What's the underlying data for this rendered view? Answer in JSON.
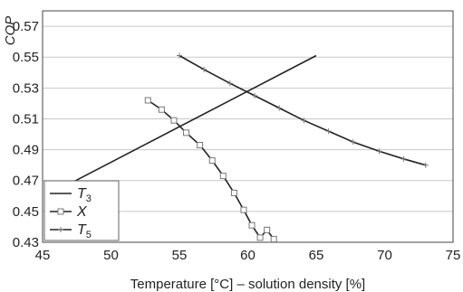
{
  "chart_data": {
    "type": "line",
    "xlabel": "Temperature [°C] – solution density [%]",
    "ylabel": "COP",
    "xlim": [
      45,
      75
    ],
    "ylim": [
      0.43,
      0.58
    ],
    "x_ticks": [
      "45",
      "50",
      "55",
      "60",
      "65",
      "70",
      "75"
    ],
    "y_ticks": [
      "0.43",
      "0.45",
      "0.47",
      "0.49",
      "0.51",
      "0.53",
      "0.55",
      "0.57"
    ],
    "grid": "horizontal",
    "legend_position": "bottom-left",
    "series": [
      {
        "name": "T",
        "name_sub": "3",
        "marker": "none",
        "color": "#222222",
        "x": [
          47,
          65
        ],
        "y": [
          0.468,
          0.551
        ]
      },
      {
        "name": "X",
        "name_sub": "",
        "marker": "square",
        "color": "#222222",
        "x": [
          52.7,
          53.7,
          54.6,
          55.5,
          56.5,
          57.4,
          58.2,
          59.0,
          59.7,
          60.3,
          60.9,
          61.4,
          61.9
        ],
        "y": [
          0.522,
          0.516,
          0.509,
          0.501,
          0.493,
          0.483,
          0.473,
          0.462,
          0.451,
          0.441,
          0.433,
          0.438,
          0.432
        ]
      },
      {
        "name": "T",
        "name_sub": "5",
        "marker": "plus",
        "color": "#222222",
        "x": [
          55,
          56.8,
          58.7,
          60.5,
          62.3,
          64.1,
          65.9,
          67.7,
          69.6,
          71.4,
          73.0
        ],
        "y": [
          0.551,
          0.542,
          0.533,
          0.525,
          0.517,
          0.509,
          0.502,
          0.495,
          0.489,
          0.484,
          0.48
        ]
      }
    ]
  }
}
